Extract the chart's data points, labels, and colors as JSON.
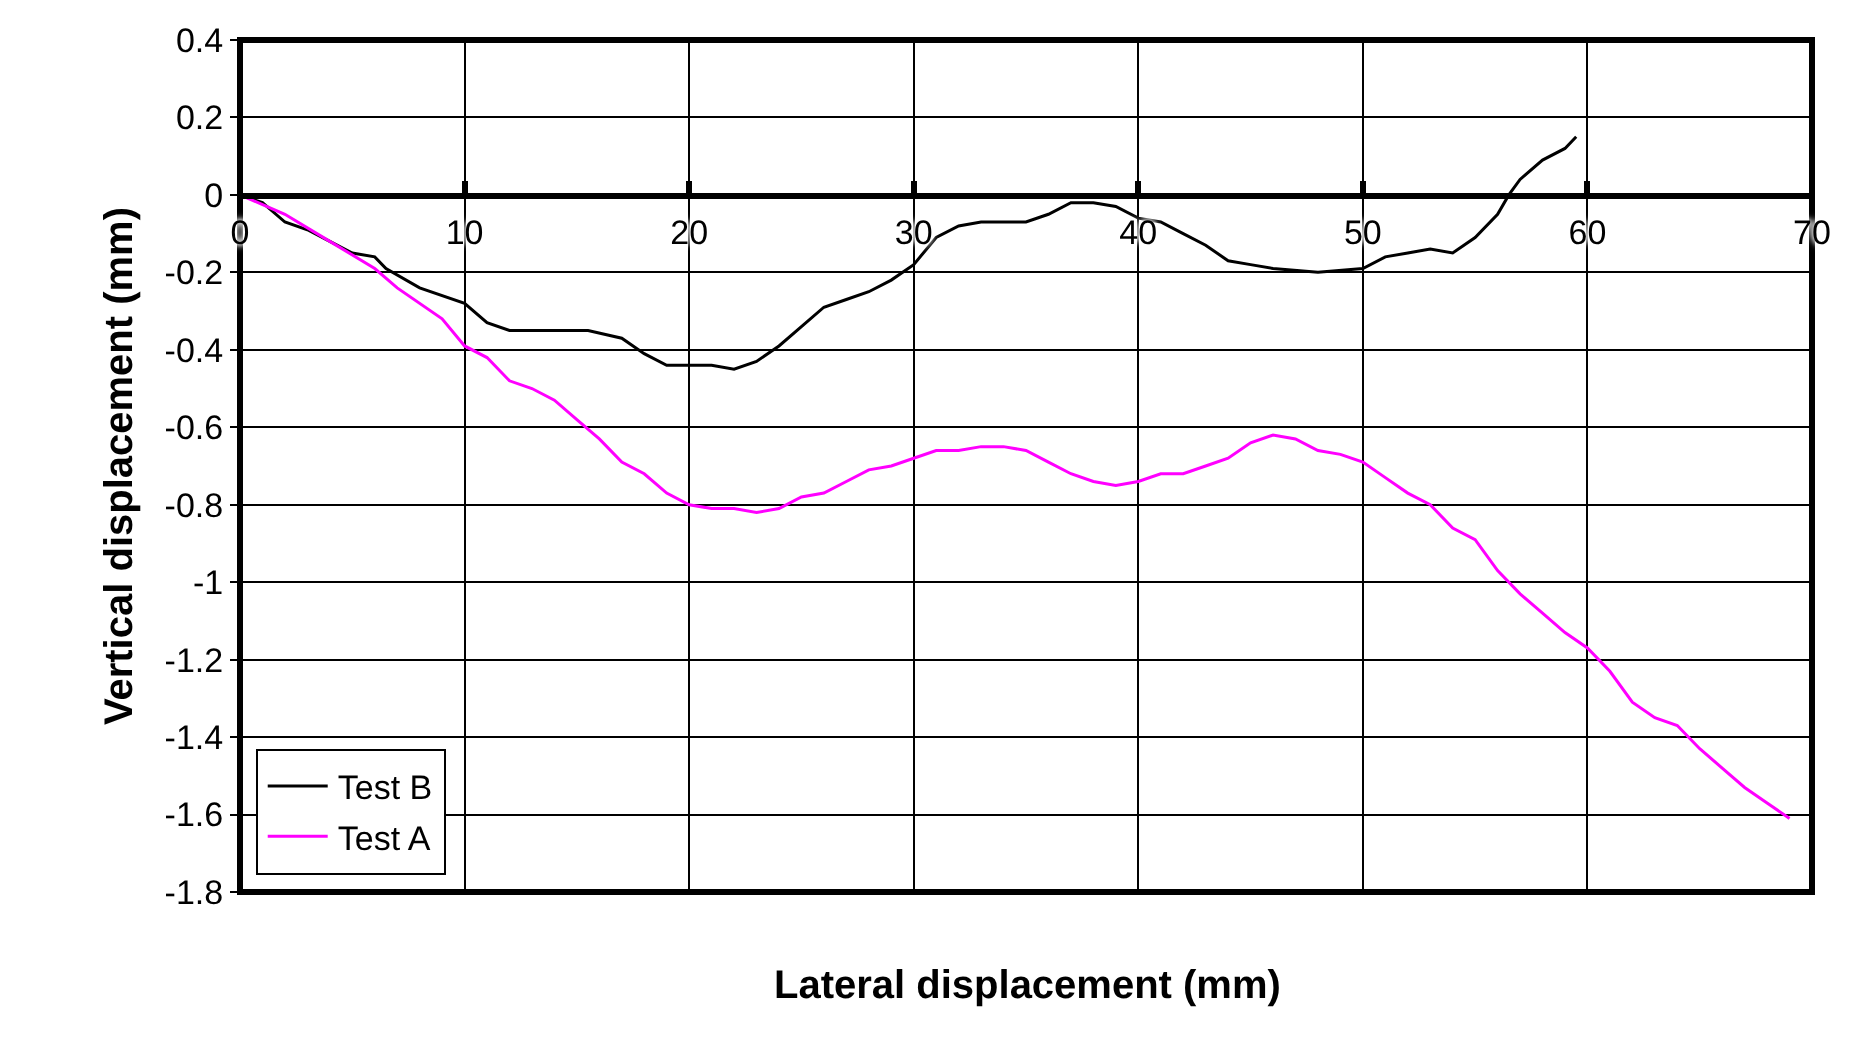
{
  "chart_data": {
    "type": "line",
    "xlabel": "Lateral displacement (mm)",
    "ylabel": "Vertical displacement (mm)",
    "xlim": [
      0,
      70
    ],
    "xticks": [
      0,
      10,
      20,
      30,
      40,
      50,
      60,
      70
    ],
    "ylim": [
      -1.8,
      0.4
    ],
    "yticks": [
      -1.8,
      -1.6,
      -1.4,
      -1.2,
      -1,
      -0.8,
      -0.6,
      -0.4,
      -0.2,
      0,
      0.2,
      0.4
    ],
    "grid": true,
    "legend": "bottom left",
    "marker": "none",
    "line_style": "solid",
    "series": [
      {
        "name": "Test B",
        "color": "#000000",
        "x": [
          0,
          1,
          2,
          3,
          4,
          5,
          6,
          6.5,
          8,
          10,
          11,
          12,
          14,
          15.5,
          17,
          18,
          19,
          21,
          22,
          23,
          24,
          25,
          26,
          27,
          28,
          29,
          30,
          31,
          32,
          33,
          35,
          36,
          37,
          38,
          39,
          40,
          41,
          42,
          43,
          44,
          45,
          46,
          48,
          50,
          51,
          52,
          53,
          54,
          55,
          56,
          56.5,
          57,
          58,
          59,
          59.5
        ],
        "values": [
          0,
          -0.02,
          -0.07,
          -0.09,
          -0.12,
          -0.15,
          -0.16,
          -0.19,
          -0.24,
          -0.28,
          -0.33,
          -0.35,
          -0.35,
          -0.35,
          -0.37,
          -0.41,
          -0.44,
          -0.44,
          -0.45,
          -0.43,
          -0.39,
          -0.34,
          -0.29,
          -0.27,
          -0.25,
          -0.22,
          -0.18,
          -0.11,
          -0.08,
          -0.07,
          -0.07,
          -0.05,
          -0.02,
          -0.02,
          -0.03,
          -0.06,
          -0.07,
          -0.1,
          -0.13,
          -0.17,
          -0.18,
          -0.19,
          -0.2,
          -0.19,
          -0.16,
          -0.15,
          -0.14,
          -0.15,
          -0.11,
          -0.05,
          0.0,
          0.04,
          0.09,
          0.12,
          0.15
        ]
      },
      {
        "name": "Test A",
        "color": "#ff00ff",
        "x": [
          0,
          2,
          4,
          6,
          7,
          9,
          10,
          11,
          12,
          13,
          14,
          15,
          16,
          17,
          18,
          19,
          20,
          21,
          22,
          23,
          24,
          25,
          26,
          27,
          28,
          29,
          30,
          31,
          32,
          33,
          34,
          35,
          36,
          37,
          38,
          39,
          40,
          41,
          42,
          43,
          44,
          45,
          46,
          47,
          48,
          49,
          50,
          51,
          52,
          53,
          54,
          55,
          56,
          57,
          58,
          59,
          60,
          61,
          62,
          63,
          64,
          65,
          66,
          67,
          68,
          69
        ],
        "values": [
          0,
          -0.05,
          -0.12,
          -0.19,
          -0.24,
          -0.32,
          -0.39,
          -0.42,
          -0.48,
          -0.5,
          -0.53,
          -0.58,
          -0.63,
          -0.69,
          -0.72,
          -0.77,
          -0.8,
          -0.81,
          -0.81,
          -0.82,
          -0.81,
          -0.78,
          -0.77,
          -0.74,
          -0.71,
          -0.7,
          -0.68,
          -0.66,
          -0.66,
          -0.65,
          -0.65,
          -0.66,
          -0.69,
          -0.72,
          -0.74,
          -0.75,
          -0.74,
          -0.72,
          -0.72,
          -0.7,
          -0.68,
          -0.64,
          -0.62,
          -0.63,
          -0.66,
          -0.67,
          -0.69,
          -0.73,
          -0.77,
          -0.8,
          -0.86,
          -0.89,
          -0.97,
          -1.03,
          -1.08,
          -1.13,
          -1.17,
          -1.23,
          -1.31,
          -1.35,
          -1.37,
          -1.43,
          -1.48,
          -1.53,
          -1.57,
          -1.61
        ]
      }
    ]
  }
}
